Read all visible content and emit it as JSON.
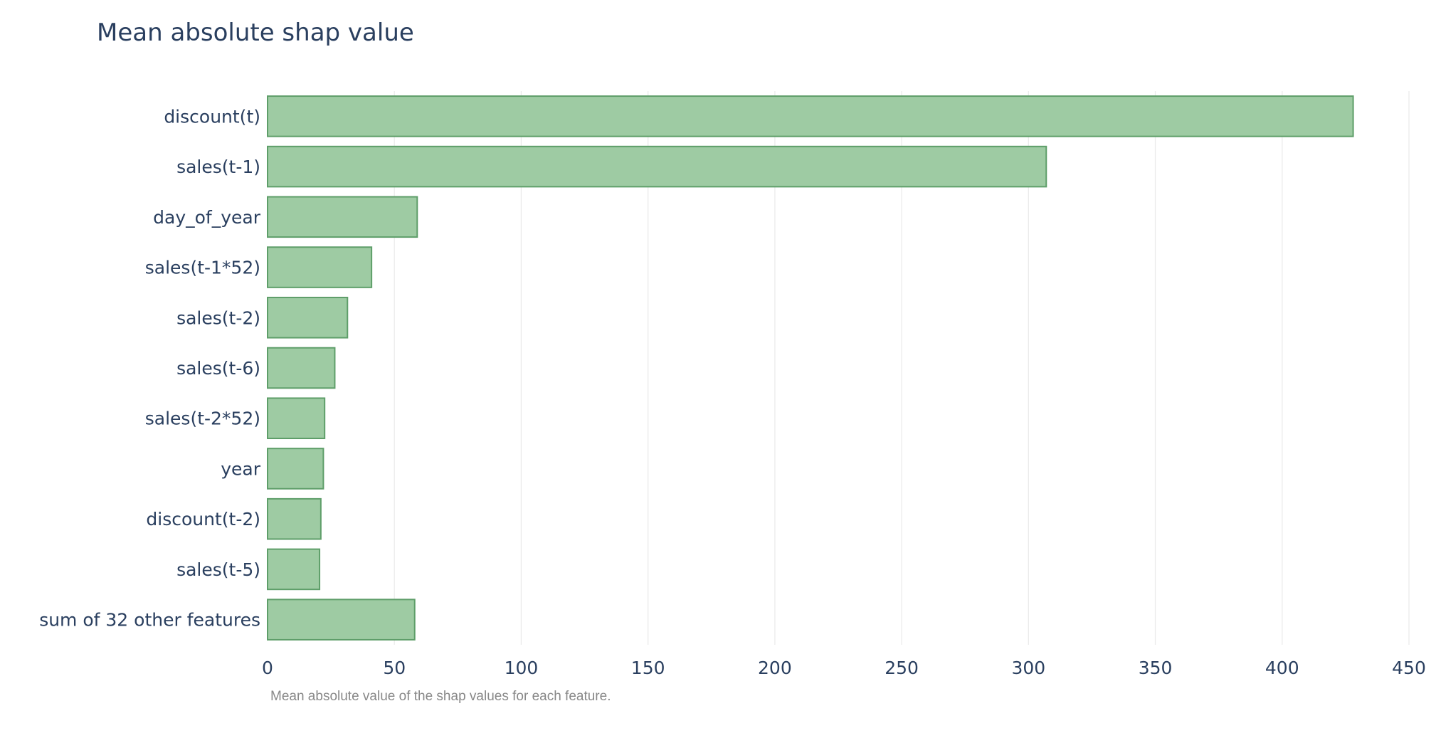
{
  "chart_data": {
    "type": "bar",
    "orientation": "horizontal",
    "title": "Mean absolute shap value",
    "caption": "Mean absolute value of the shap values for each feature.",
    "categories": [
      "discount(t)",
      "sales(t-1)",
      "day_of_year",
      "sales(t-1*52)",
      "sales(t-2)",
      "sales(t-6)",
      "sales(t-2*52)",
      "year",
      "discount(t-2)",
      "sales(t-5)",
      "sum of 32 other features"
    ],
    "values": [
      428,
      307,
      59,
      41,
      31.5,
      26.5,
      22.5,
      22,
      21,
      20.5,
      58
    ],
    "xlim": [
      0,
      450
    ],
    "xticks": [
      0,
      50,
      100,
      150,
      200,
      250,
      300,
      350,
      400,
      450
    ],
    "grid": "vertical",
    "legend": "none",
    "colors": {
      "bar_fill": "#9ecba3",
      "bar_stroke": "#5e9e69",
      "text": "#2a3f5f",
      "caption": "#888888",
      "grid": "#ebebeb"
    }
  }
}
